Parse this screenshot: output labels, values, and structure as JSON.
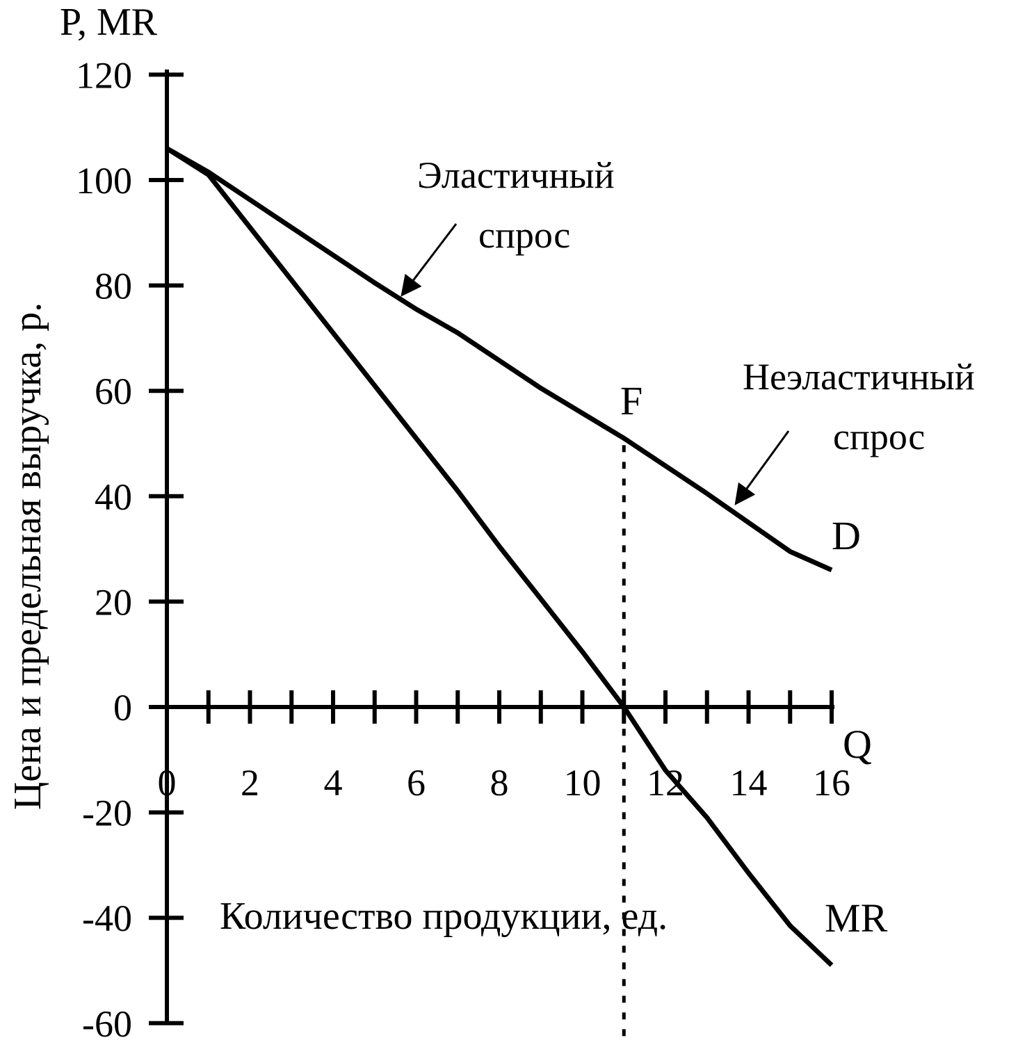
{
  "chart_data": {
    "type": "line",
    "title": "",
    "y_axis_symbol": "P, MR",
    "x_axis_symbol": "Q",
    "ylabel": "Цена и предельная выручка, р.",
    "xlabel": "Количество продукции, ед.",
    "xlim": [
      0,
      16
    ],
    "ylim": [
      -60,
      120
    ],
    "x_ticks": [
      0,
      1,
      2,
      3,
      4,
      5,
      6,
      7,
      8,
      9,
      10,
      11,
      12,
      13,
      14,
      15,
      16
    ],
    "x_tick_labels": [
      "0",
      "2",
      "4",
      "6",
      "8",
      "10",
      "12",
      "14",
      "16"
    ],
    "x_tick_label_values": [
      0,
      2,
      4,
      6,
      8,
      10,
      12,
      14,
      16
    ],
    "y_ticks": [
      -60,
      -40,
      -20,
      0,
      20,
      40,
      60,
      80,
      100,
      120
    ],
    "y_tick_labels": [
      "-60",
      "-40",
      "-20",
      "0",
      "20",
      "40",
      "60",
      "80",
      "100",
      "120"
    ],
    "grid": false,
    "series": [
      {
        "name": "D",
        "x": [
          0,
          1,
          3,
          5,
          6,
          7,
          9,
          11,
          13,
          15,
          16
        ],
        "y": [
          106,
          101.5,
          91,
          80.5,
          75.5,
          71,
          60.5,
          51,
          40.5,
          29.5,
          26
        ]
      },
      {
        "name": "MR",
        "x": [
          0,
          1,
          3,
          4,
          4.5,
          6,
          7,
          8,
          9,
          10,
          11,
          12,
          13,
          14,
          15,
          16
        ],
        "y": [
          106,
          101,
          81,
          71,
          66,
          51,
          41,
          30.5,
          20.5,
          10.5,
          0,
          -12,
          -21,
          -31.5,
          -41.5,
          -49
        ]
      }
    ],
    "point": {
      "label": "F",
      "x": 11,
      "y": 51
    },
    "dashed_line_x": 11,
    "annotations": [
      {
        "lines": [
          "Эластичный",
          "спрос"
        ]
      },
      {
        "lines": [
          "Неэластичный",
          "спрос"
        ]
      }
    ]
  }
}
